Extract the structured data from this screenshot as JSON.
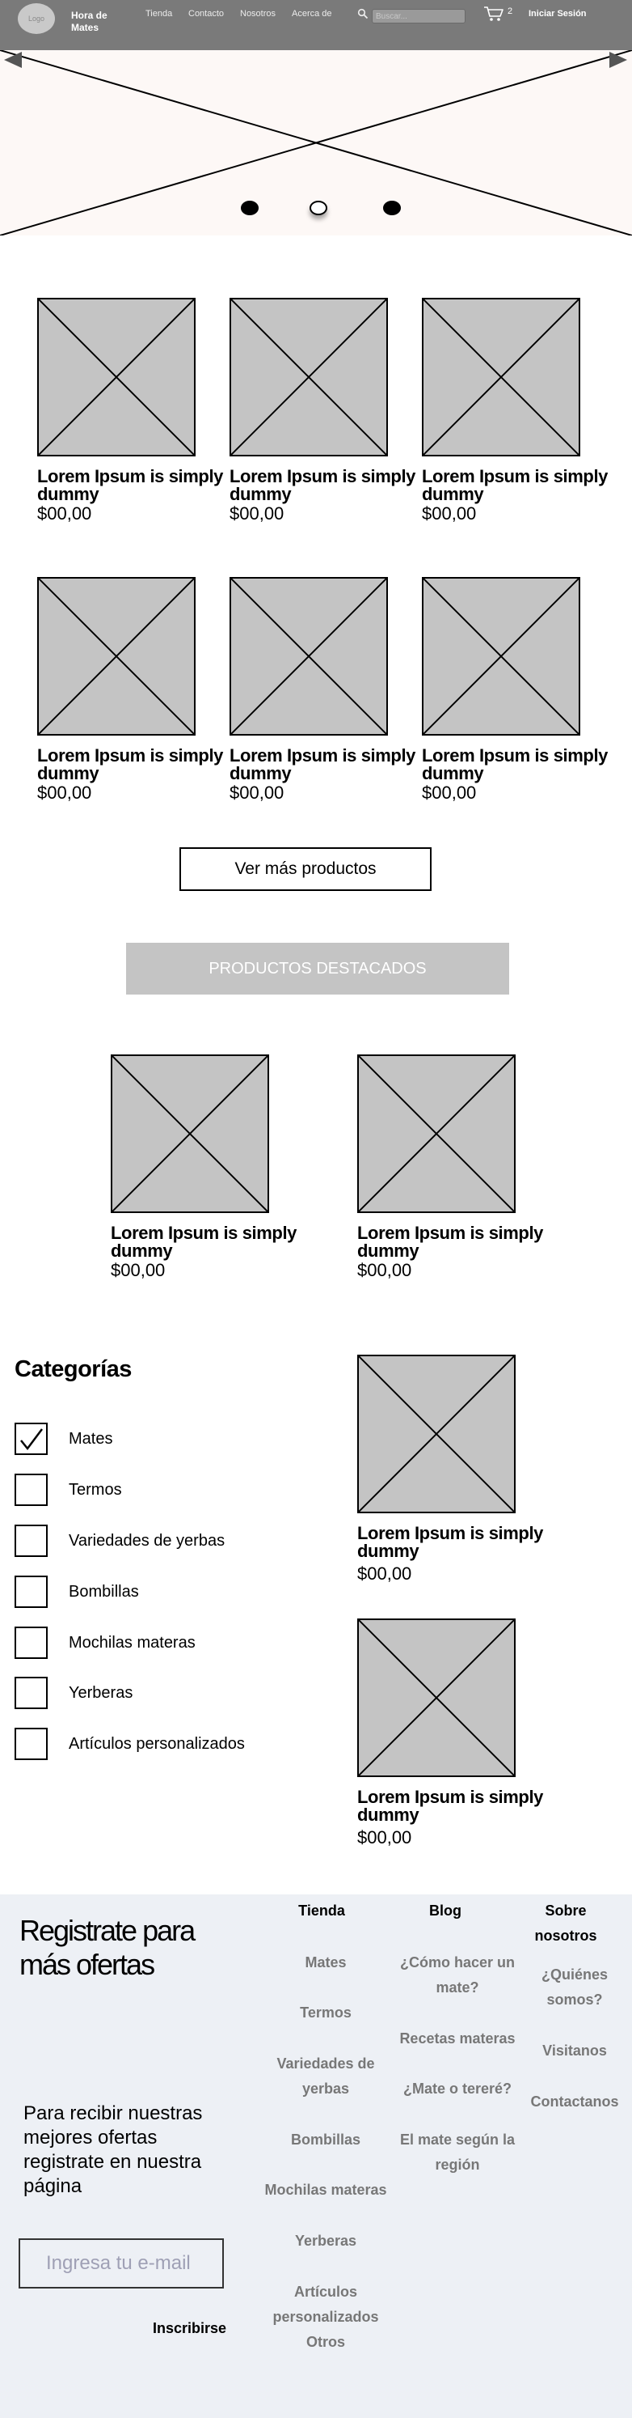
{
  "header": {
    "logo_text": "Logo",
    "brand": "Hora de Mates",
    "nav": [
      "Tienda",
      "Contacto",
      "Nosotros",
      "Acerca de"
    ],
    "search_placeholder": "Buscar...",
    "cart_count": "2",
    "login": "Iniciar Sesión"
  },
  "carousel": {
    "slide_count": 3,
    "active_slide": 2
  },
  "products": [
    {
      "title": "Lorem Ipsum is simply dummy",
      "price": "$00,00"
    },
    {
      "title": "Lorem Ipsum is simply dummy",
      "price": "$00,00"
    },
    {
      "title": "Lorem Ipsum is simply dummy",
      "price": "$00,00"
    },
    {
      "title": "Lorem Ipsum is simply dummy",
      "price": "$00,00"
    },
    {
      "title": "Lorem Ipsum is simply dummy",
      "price": "$00,00"
    },
    {
      "title": "Lorem Ipsum is simply dummy",
      "price": "$00,00"
    }
  ],
  "more_button": "Ver más productos",
  "featured": {
    "title": "PRODUCTOS DESTACADOS",
    "items": [
      {
        "title": "Lorem Ipsum is simply dummy",
        "price": "$00,00"
      },
      {
        "title": "Lorem Ipsum is simply dummy",
        "price": "$00,00"
      }
    ]
  },
  "categories": {
    "title": "Categorías",
    "items": [
      {
        "label": "Mates",
        "checked": true
      },
      {
        "label": "Termos",
        "checked": false
      },
      {
        "label": "Variedades de yerbas",
        "checked": false
      },
      {
        "label": "Bombillas",
        "checked": false
      },
      {
        "label": "Mochilas materas",
        "checked": false
      },
      {
        "label": "Yerberas",
        "checked": false
      },
      {
        "label": "Artículos personalizados",
        "checked": false
      }
    ]
  },
  "side_products": [
    {
      "title": "Lorem Ipsum is simply dummy",
      "price": "$00,00"
    },
    {
      "title": "Lorem Ipsum is simply dummy",
      "price": "$00,00"
    }
  ],
  "footer": {
    "heading": "Registrate para más ofertas",
    "text": "Para recibir nuestras mejores ofertas registrate en nuestra página",
    "email_placeholder": "Ingresa tu e-mail",
    "subscribe": "Inscribirse",
    "columns": {
      "tienda": {
        "title": "Tienda",
        "links": [
          "Mates",
          "Termos",
          "Variedades de yerbas",
          "Bombillas",
          "Mochilas materas",
          "Yerberas",
          "Artículos personalizados",
          "Otros"
        ]
      },
      "blog": {
        "title": "Blog",
        "links": [
          "¿Cómo hacer un mate?",
          "Recetas materas",
          "¿Mate o tereré?",
          "El mate según la región"
        ]
      },
      "sobre": {
        "title": "Sobre nosotros",
        "links": [
          "¿Quiénes somos?",
          "Visitanos",
          "Contactanos"
        ]
      }
    }
  }
}
